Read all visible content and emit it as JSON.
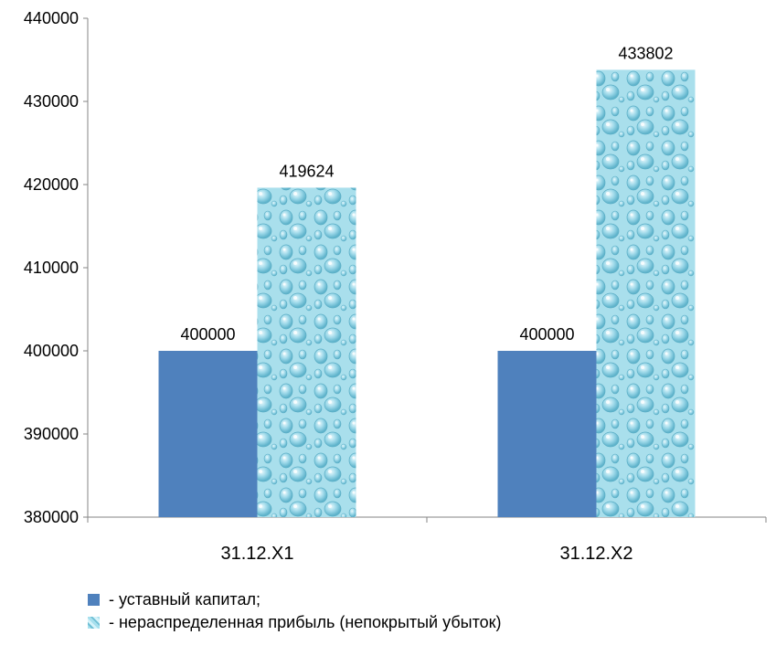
{
  "colors": {
    "series1": "#4f81bd",
    "series2": "#8fd3e6"
  },
  "chart_data": {
    "type": "bar",
    "categories": [
      "31.12.X1",
      "31.12.X2"
    ],
    "series": [
      {
        "name": "- уставный капитал;",
        "values": [
          400000,
          400000
        ]
      },
      {
        "name": "- нераспределенная прибыль (непокрытый убыток)",
        "values": [
          419624,
          433802
        ]
      }
    ],
    "data_labels": [
      [
        "400000",
        "400000"
      ],
      [
        "419624",
        "433802"
      ]
    ],
    "y_ticks": [
      "380000",
      "390000",
      "400000",
      "410000",
      "420000",
      "430000",
      "440000"
    ],
    "ylim": [
      380000,
      440000
    ],
    "grid": false,
    "legend_position": "bottom-left"
  },
  "legend": {
    "item1": "- уставный капитал;",
    "item2": "- нераспределенная прибыль (непокрытый убыток)"
  }
}
